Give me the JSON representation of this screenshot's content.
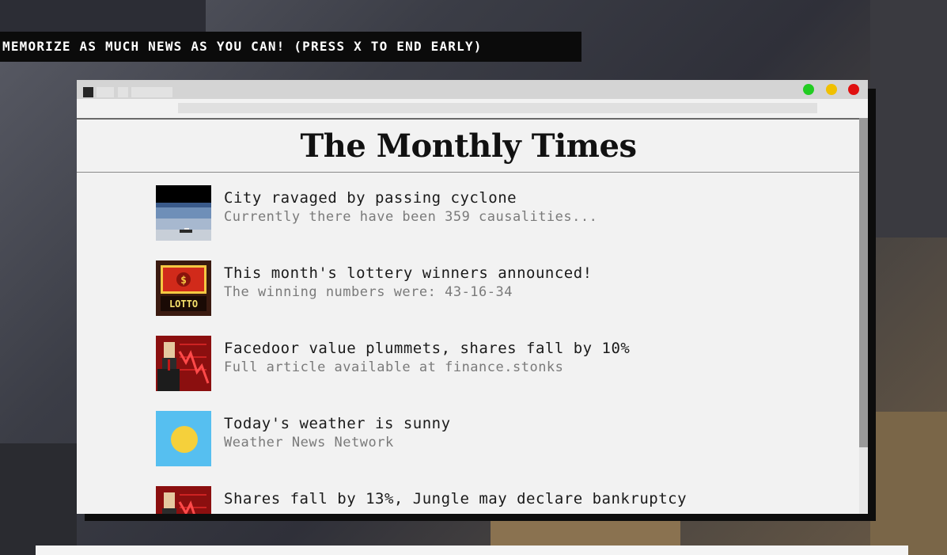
{
  "game": {
    "instruction": "MEMORIZE AS MUCH NEWS AS YOU CAN! (PRESS X TO END EARLY)"
  },
  "browser": {
    "window_controls": {
      "colors": {
        "green": "#22cc22",
        "yellow": "#f0c000",
        "red": "#e01010"
      }
    }
  },
  "newspaper": {
    "title": "The Monthly Times",
    "articles": [
      {
        "icon": "space-earth-icon",
        "headline": "City ravaged by passing cyclone",
        "subline": "Currently there have been 359 causalities..."
      },
      {
        "icon": "lotto-icon",
        "headline": "This month's lottery winners announced!",
        "subline": "The winning numbers were: 43-16-34",
        "icon_text": "LOTTO"
      },
      {
        "icon": "stock-crash-icon",
        "headline": "Facedoor value plummets, shares fall by 10%",
        "subline": "Full article available at finance.stonks"
      },
      {
        "icon": "sun-icon",
        "headline": "Today's weather is sunny",
        "subline": "Weather News Network"
      },
      {
        "icon": "stock-crash-icon",
        "headline": "Shares fall by 13%, Jungle may declare bankruptcy",
        "subline": ""
      }
    ]
  }
}
